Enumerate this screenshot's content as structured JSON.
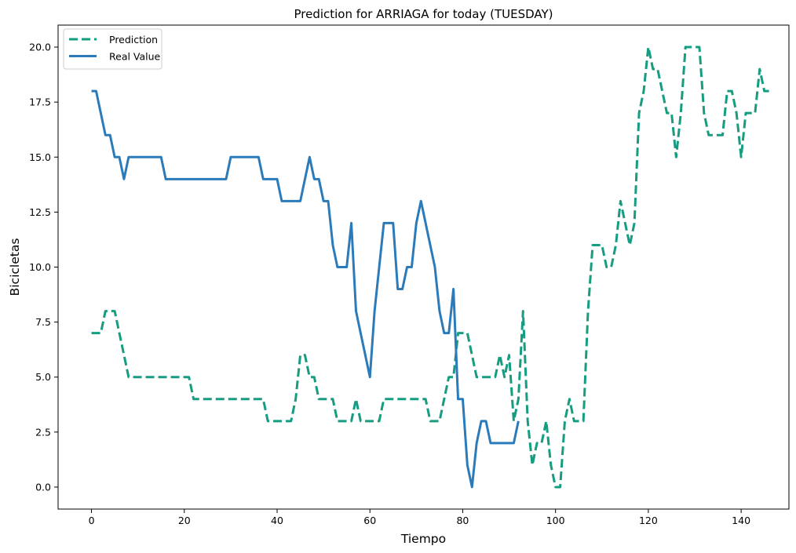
{
  "chart_data": {
    "type": "line",
    "title": "Prediction for ARRIAGA for today (TUESDAY)",
    "xlabel": "Tiempo",
    "ylabel": "Bicicletas",
    "xlim": [
      -7.2,
      150.3
    ],
    "ylim": [
      -1.0,
      21.0
    ],
    "xticks": [
      0,
      20,
      40,
      60,
      80,
      100,
      120,
      140
    ],
    "yticks": [
      0.0,
      2.5,
      5.0,
      7.5,
      10.0,
      12.5,
      15.0,
      17.5,
      20.0
    ],
    "xtick_labels": [
      "0",
      "20",
      "40",
      "60",
      "80",
      "100",
      "120",
      "140"
    ],
    "ytick_labels": [
      "0.0",
      "2.5",
      "5.0",
      "7.5",
      "10.0",
      "12.5",
      "15.0",
      "17.5",
      "20.0"
    ],
    "grid": false,
    "legend_position": "upper-left",
    "series": [
      {
        "name": "Prediction",
        "color": "#169c80",
        "style": "dashed",
        "values": [
          7,
          7,
          7,
          8,
          8,
          8,
          7,
          6,
          5,
          5,
          5,
          5,
          5,
          5,
          5,
          5,
          5,
          5,
          5,
          5,
          5,
          5,
          4,
          4,
          4,
          4,
          4,
          4,
          4,
          4,
          4,
          4,
          4,
          4,
          4,
          4,
          4,
          4,
          3,
          3,
          3,
          3,
          3,
          3,
          4,
          6,
          6,
          5,
          5,
          4,
          4,
          4,
          4,
          3,
          3,
          3,
          3,
          4,
          3,
          3,
          3,
          3,
          3,
          4,
          4,
          4,
          4,
          4,
          4,
          4,
          4,
          4,
          4,
          3,
          3,
          3,
          4,
          5,
          5,
          7,
          7,
          7,
          6,
          5,
          5,
          5,
          5,
          5,
          6,
          5,
          6,
          3,
          4,
          8,
          3,
          1,
          2,
          2,
          3,
          1,
          0,
          0,
          3,
          4,
          3,
          3,
          3,
          8,
          11,
          11,
          11,
          10,
          10,
          11,
          13,
          12,
          11,
          12,
          17,
          18,
          20,
          19,
          19,
          18,
          17,
          17,
          15,
          17,
          20,
          20,
          20,
          20,
          17,
          16,
          16,
          16,
          16,
          18,
          18,
          17,
          15,
          17,
          17,
          17,
          19,
          18,
          18
        ]
      },
      {
        "name": "Real Value",
        "color": "#2b7bba",
        "style": "solid",
        "values": [
          18,
          18,
          17,
          16,
          16,
          15,
          15,
          14,
          15,
          15,
          15,
          15,
          15,
          15,
          15,
          15,
          14,
          14,
          14,
          14,
          14,
          14,
          14,
          14,
          14,
          14,
          14,
          14,
          14,
          14,
          15,
          15,
          15,
          15,
          15,
          15,
          15,
          14,
          14,
          14,
          14,
          13,
          13,
          13,
          13,
          13,
          14,
          15,
          14,
          14,
          13,
          13,
          11,
          10,
          10,
          10,
          12,
          8,
          7,
          6,
          5,
          8,
          10,
          12,
          12,
          12,
          9,
          9,
          10,
          10,
          12,
          13,
          12,
          11,
          10,
          8,
          7,
          7,
          9,
          4,
          4,
          1,
          0,
          2,
          3,
          3,
          2,
          2,
          2,
          2,
          2,
          2,
          3
        ]
      }
    ]
  }
}
